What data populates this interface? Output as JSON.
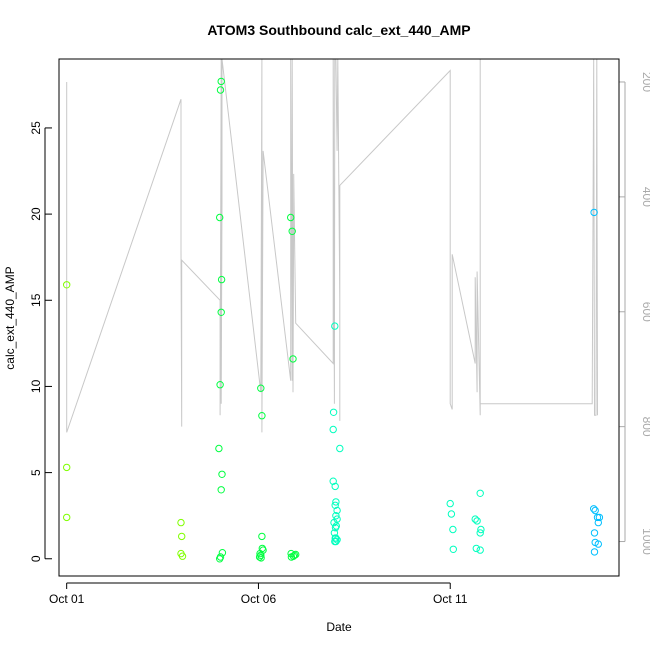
{
  "chart_data": {
    "type": "scatter",
    "title": "ATOM3 Southbound calc_ext_440_AMP",
    "xlabel": "Date",
    "ylabel": "calc_ext_440_AMP",
    "x_ticks": [
      "Oct 01",
      "Oct 06",
      "Oct 11"
    ],
    "x_tick_values": [
      1,
      6,
      11
    ],
    "xlim": [
      0.8,
      15.4
    ],
    "ylim": [
      -1,
      29
    ],
    "y_ticks": [
      0,
      5,
      10,
      15,
      20,
      25
    ],
    "y2_ticks": [
      200,
      400,
      600,
      800,
      1000
    ],
    "y2lim": [
      1060,
      160
    ],
    "y2_reversed": true,
    "point_colors": [
      "#80ff00",
      "#00ff40",
      "#00ffbf",
      "#00bfff"
    ],
    "points": [
      {
        "x": 1.0,
        "y": 15.9,
        "c": 0
      },
      {
        "x": 1.0,
        "y": 5.3,
        "c": 0
      },
      {
        "x": 1.0,
        "y": 2.4,
        "c": 0
      },
      {
        "x": 3.98,
        "y": 2.1,
        "c": 0
      },
      {
        "x": 4.0,
        "y": 1.3,
        "c": 0
      },
      {
        "x": 3.98,
        "y": 0.3,
        "c": 0
      },
      {
        "x": 4.02,
        "y": 0.15,
        "c": 0
      },
      {
        "x": 4.97,
        "y": 6.4,
        "c": 1
      },
      {
        "x": 5.01,
        "y": 27.2,
        "c": 1
      },
      {
        "x": 5.03,
        "y": 27.7,
        "c": 1
      },
      {
        "x": 4.99,
        "y": 19.8,
        "c": 1
      },
      {
        "x": 5.04,
        "y": 16.2,
        "c": 1
      },
      {
        "x": 5.03,
        "y": 14.3,
        "c": 1
      },
      {
        "x": 5.0,
        "y": 10.1,
        "c": 1
      },
      {
        "x": 5.05,
        "y": 4.9,
        "c": 1
      },
      {
        "x": 5.03,
        "y": 4.0,
        "c": 1
      },
      {
        "x": 5.06,
        "y": 0.35,
        "c": 1
      },
      {
        "x": 5.01,
        "y": 0.1,
        "c": 1
      },
      {
        "x": 4.99,
        "y": 0.0,
        "c": 1
      },
      {
        "x": 6.06,
        "y": 9.9,
        "c": 1
      },
      {
        "x": 6.09,
        "y": 8.3,
        "c": 1
      },
      {
        "x": 6.09,
        "y": 1.3,
        "c": 1
      },
      {
        "x": 6.1,
        "y": 0.6,
        "c": 1
      },
      {
        "x": 6.04,
        "y": 0.3,
        "c": 1
      },
      {
        "x": 6.06,
        "y": 0.2,
        "c": 1
      },
      {
        "x": 6.03,
        "y": 0.1,
        "c": 1
      },
      {
        "x": 6.07,
        "y": 0.05,
        "c": 1
      },
      {
        "x": 6.12,
        "y": 0.5,
        "c": 1
      },
      {
        "x": 6.84,
        "y": 19.8,
        "c": 1
      },
      {
        "x": 6.88,
        "y": 19.0,
        "c": 1
      },
      {
        "x": 6.9,
        "y": 11.6,
        "c": 1
      },
      {
        "x": 6.85,
        "y": 0.3,
        "c": 1
      },
      {
        "x": 6.86,
        "y": 0.1,
        "c": 1
      },
      {
        "x": 6.94,
        "y": 0.2,
        "c": 1
      },
      {
        "x": 6.97,
        "y": 0.25,
        "c": 1
      },
      {
        "x": 6.91,
        "y": 0.15,
        "c": 1
      },
      {
        "x": 7.99,
        "y": 13.5,
        "c": 2
      },
      {
        "x": 7.96,
        "y": 8.5,
        "c": 2
      },
      {
        "x": 7.95,
        "y": 7.5,
        "c": 2
      },
      {
        "x": 7.95,
        "y": 4.5,
        "c": 2
      },
      {
        "x": 8.0,
        "y": 3.1,
        "c": 2
      },
      {
        "x": 7.97,
        "y": 2.1,
        "c": 2
      },
      {
        "x": 8.01,
        "y": 1.8,
        "c": 2
      },
      {
        "x": 7.98,
        "y": 1.5,
        "c": 2
      },
      {
        "x": 8.02,
        "y": 1.2,
        "c": 2
      },
      {
        "x": 7.99,
        "y": 1.0,
        "c": 2
      },
      {
        "x": 8.05,
        "y": 1.1,
        "c": 2
      },
      {
        "x": 8.12,
        "y": 6.4,
        "c": 2
      },
      {
        "x": 8.0,
        "y": 4.2,
        "c": 2
      },
      {
        "x": 8.02,
        "y": 3.3,
        "c": 2
      },
      {
        "x": 8.05,
        "y": 2.8,
        "c": 2
      },
      {
        "x": 8.02,
        "y": 2.5,
        "c": 2
      },
      {
        "x": 8.05,
        "y": 2.3,
        "c": 2
      },
      {
        "x": 8.03,
        "y": 1.9,
        "c": 2
      },
      {
        "x": 8.0,
        "y": 1.2,
        "c": 2
      },
      {
        "x": 8.02,
        "y": 1.0,
        "c": 2
      },
      {
        "x": 11.0,
        "y": 3.2,
        "c": 2
      },
      {
        "x": 11.03,
        "y": 2.6,
        "c": 2
      },
      {
        "x": 11.07,
        "y": 1.7,
        "c": 2
      },
      {
        "x": 11.08,
        "y": 0.55,
        "c": 2
      },
      {
        "x": 11.65,
        "y": 2.3,
        "c": 2
      },
      {
        "x": 11.7,
        "y": 2.2,
        "c": 2
      },
      {
        "x": 11.78,
        "y": 3.8,
        "c": 2
      },
      {
        "x": 11.8,
        "y": 1.7,
        "c": 2
      },
      {
        "x": 11.78,
        "y": 1.5,
        "c": 2
      },
      {
        "x": 11.68,
        "y": 0.6,
        "c": 2
      },
      {
        "x": 11.78,
        "y": 0.5,
        "c": 2
      },
      {
        "x": 14.75,
        "y": 20.1,
        "c": 3
      },
      {
        "x": 14.74,
        "y": 2.9,
        "c": 3
      },
      {
        "x": 14.78,
        "y": 2.8,
        "c": 3
      },
      {
        "x": 14.84,
        "y": 2.4,
        "c": 3
      },
      {
        "x": 14.86,
        "y": 2.1,
        "c": 3
      },
      {
        "x": 14.89,
        "y": 2.4,
        "c": 3
      },
      {
        "x": 14.76,
        "y": 1.5,
        "c": 3
      },
      {
        "x": 14.78,
        "y": 0.95,
        "c": 3
      },
      {
        "x": 14.86,
        "y": 0.85,
        "c": 3
      },
      {
        "x": 14.76,
        "y": 0.4,
        "c": 3
      }
    ],
    "line_color": "#c8c8c8",
    "line_y2": [
      [
        1.0,
        200
      ],
      [
        1.0,
        810
      ],
      [
        3.98,
        230
      ],
      [
        3.98,
        490
      ],
      [
        4.0,
        800
      ],
      [
        4.0,
        510
      ],
      [
        5.0,
        580
      ],
      [
        5.0,
        780
      ],
      [
        5.03,
        160
      ],
      [
        5.03,
        760
      ],
      [
        5.05,
        400
      ],
      [
        5.05,
        160
      ],
      [
        6.06,
        740
      ],
      [
        6.09,
        160
      ],
      [
        6.09,
        810
      ],
      [
        6.12,
        320
      ],
      [
        6.84,
        720
      ],
      [
        6.84,
        160
      ],
      [
        6.88,
        720
      ],
      [
        6.88,
        160
      ],
      [
        6.9,
        740
      ],
      [
        6.92,
        420
      ],
      [
        6.92,
        360
      ],
      [
        6.97,
        620
      ],
      [
        7.95,
        690
      ],
      [
        7.95,
        160
      ],
      [
        7.98,
        760
      ],
      [
        7.99,
        160
      ],
      [
        8.02,
        160
      ],
      [
        8.05,
        320
      ],
      [
        8.07,
        160
      ],
      [
        8.12,
        580
      ],
      [
        8.12,
        790
      ],
      [
        8.12,
        380
      ],
      [
        11.0,
        180
      ],
      [
        11.0,
        760
      ],
      [
        11.05,
        770
      ],
      [
        11.05,
        500
      ],
      [
        11.65,
        690
      ],
      [
        11.65,
        540
      ],
      [
        11.7,
        740
      ],
      [
        11.7,
        530
      ],
      [
        11.78,
        780
      ],
      [
        11.78,
        160
      ],
      [
        11.78,
        760
      ],
      [
        14.7,
        760
      ],
      [
        14.74,
        160
      ],
      [
        14.76,
        780
      ],
      [
        14.8,
        780
      ],
      [
        14.82,
        160
      ],
      [
        14.84,
        780
      ]
    ]
  }
}
